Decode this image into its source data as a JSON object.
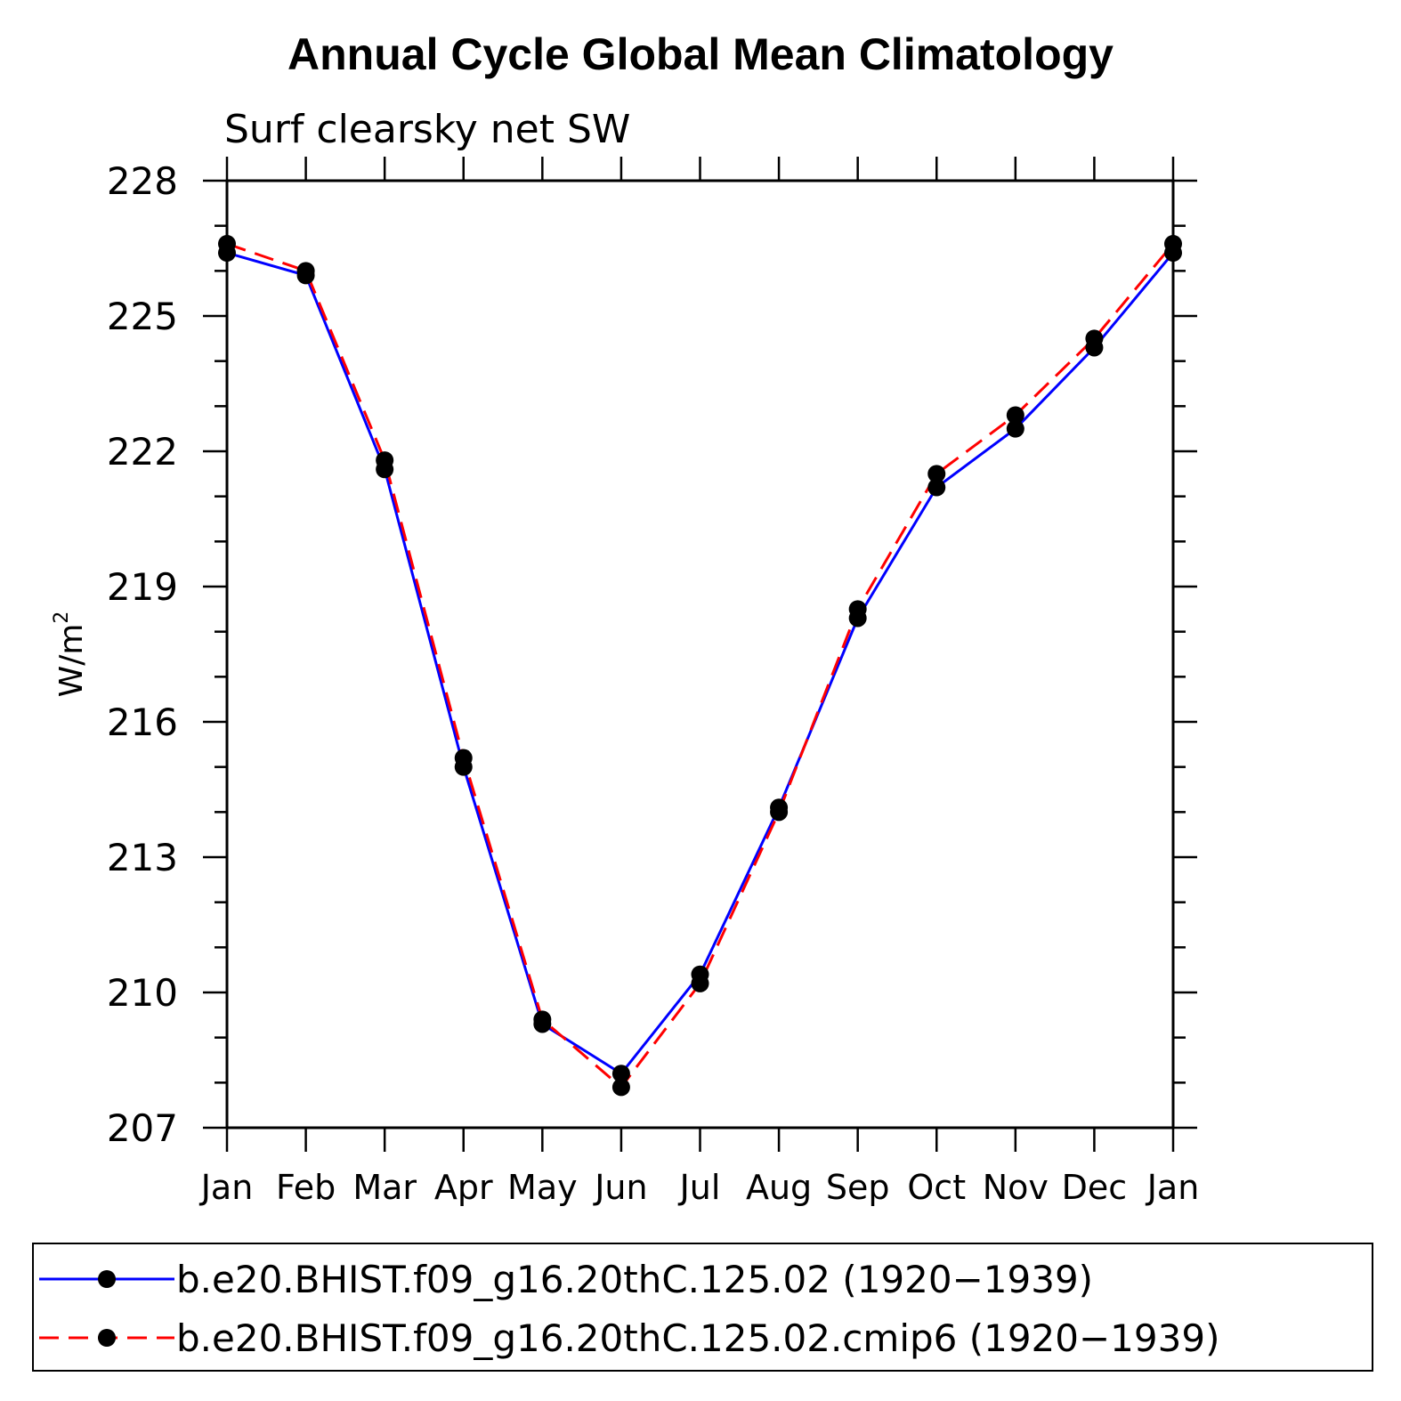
{
  "chart_data": {
    "type": "line",
    "title": "Annual Cycle Global Mean Climatology",
    "subtitle": "Surf clearsky net SW",
    "xlabel": "",
    "ylabel": "W/m",
    "ylabel_superscript": "2",
    "categories": [
      "Jan",
      "Feb",
      "Mar",
      "Apr",
      "May",
      "Jun",
      "Jul",
      "Aug",
      "Sep",
      "Oct",
      "Nov",
      "Dec",
      "Jan"
    ],
    "ylim": [
      207,
      228
    ],
    "yticks": [
      207,
      210,
      213,
      216,
      219,
      222,
      225,
      228
    ],
    "grid": false,
    "legend_position": "bottom",
    "series": [
      {
        "name": "b.e20.BHIST.f09_g16.20thC.125.02 (1920−1939)",
        "color": "#0000ff",
        "dash": "solid",
        "marker": "filled-circle",
        "values": [
          226.4,
          225.9,
          221.6,
          215.0,
          209.3,
          208.2,
          210.4,
          214.1,
          218.3,
          221.2,
          222.5,
          224.3,
          226.4
        ]
      },
      {
        "name": "b.e20.BHIST.f09_g16.20thC.125.02.cmip6 (1920−1939)",
        "color": "#ff0000",
        "dash": "dashed",
        "marker": "filled-circle",
        "values": [
          226.6,
          226.0,
          221.8,
          215.2,
          209.4,
          207.9,
          210.2,
          214.0,
          218.5,
          221.5,
          222.8,
          224.5,
          226.6
        ]
      }
    ]
  }
}
